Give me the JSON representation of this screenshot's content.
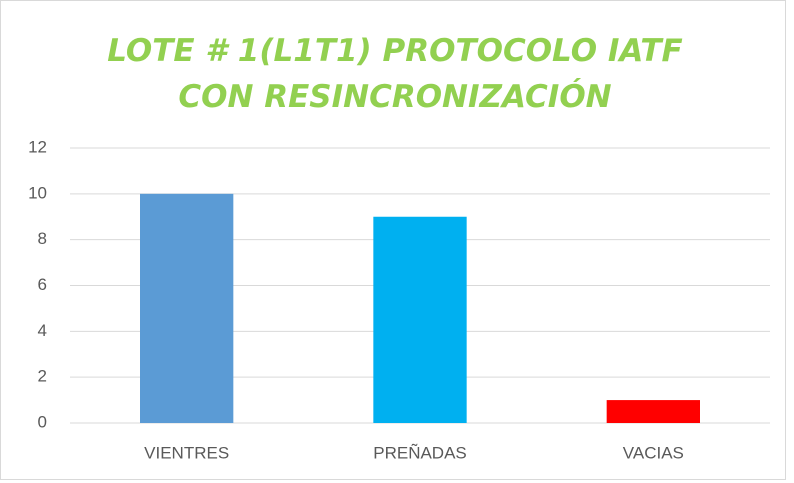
{
  "chart_data": {
    "type": "bar",
    "title": "LOTE # 1(L1T1) PROTOCOLO IATF CON RESINCRONIZACIÓN",
    "categories": [
      "VIENTRES",
      "PREÑADAS",
      "VACIAS"
    ],
    "values": [
      10,
      9,
      1
    ],
    "colors": [
      "#5b9bd5",
      "#00b0f0",
      "#ff0000"
    ],
    "ylim": [
      0,
      12
    ],
    "yticks": [
      0,
      2,
      4,
      6,
      8,
      10,
      12
    ],
    "grid": true
  }
}
